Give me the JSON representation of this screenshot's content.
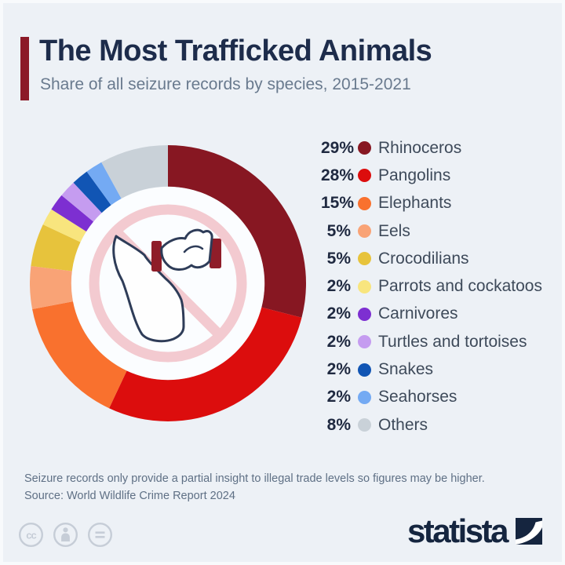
{
  "page": {
    "background_color": "#edf1f6"
  },
  "header": {
    "title": "The Most Trafficked Animals",
    "subtitle": "Share of all seizure records by species, 2015-2021",
    "accent_color": "#8c1a28"
  },
  "chart_data": {
    "type": "pie",
    "variant": "donut",
    "title": "The Most Trafficked Animals",
    "subtitle": "Share of all seizure records by species, 2015-2021",
    "unit": "%",
    "start_angle_deg": 0,
    "direction": "clockwise",
    "inner_radius_ratio": 0.7,
    "legend_position": "right",
    "center_icon": "prohibited-rhino-horn-trade-icon",
    "series": [
      {
        "label": "Rhinoceros",
        "value": 29,
        "color": "#871722"
      },
      {
        "label": "Pangolins",
        "value": 28,
        "color": "#dc0d0d"
      },
      {
        "label": "Elephants",
        "value": 15,
        "color": "#f9712e"
      },
      {
        "label": "Eels",
        "value": 5,
        "color": "#f9a376"
      },
      {
        "label": "Crocodilians",
        "value": 5,
        "color": "#e7c33c"
      },
      {
        "label": "Parrots and cockatoos",
        "value": 2,
        "color": "#f8e57e"
      },
      {
        "label": "Carnivores",
        "value": 2,
        "color": "#7d2fd1"
      },
      {
        "label": "Turtles and tortoises",
        "value": 2,
        "color": "#c59cf0"
      },
      {
        "label": "Snakes",
        "value": 2,
        "color": "#1155b4"
      },
      {
        "label": "Seahorses",
        "value": 2,
        "color": "#74aaf3"
      },
      {
        "label": "Others",
        "value": 8,
        "color": "#c9d1d8"
      }
    ]
  },
  "footer": {
    "note": "Seizure records only provide a partial insight to illegal trade levels so figures may be higher.",
    "source": "Source: World Wildlife Crime Report 2024"
  },
  "branding": {
    "logo_text": "statista",
    "logo_color": "#15253f",
    "license_icons": [
      "cc-icon",
      "attribution-icon",
      "no-derivatives-icon"
    ]
  }
}
